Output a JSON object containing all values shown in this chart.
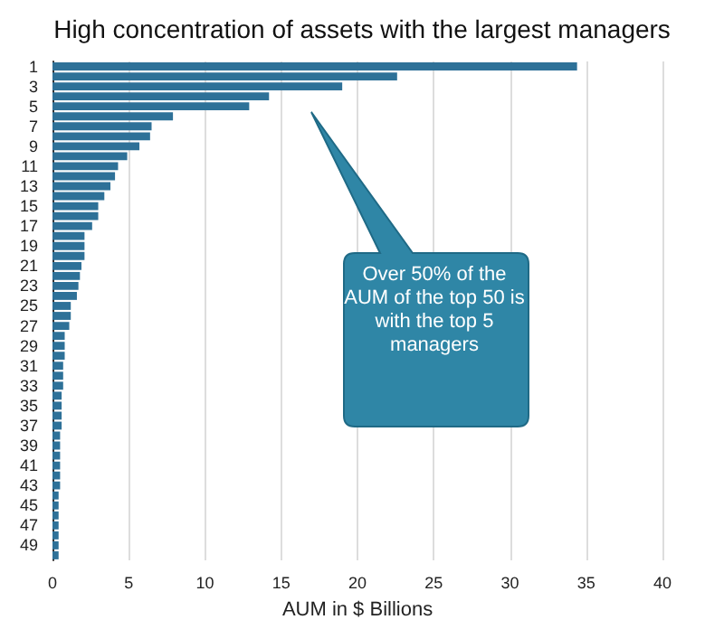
{
  "chart_data": {
    "type": "bar",
    "orientation": "horizontal",
    "title": "High concentration of assets with the largest managers",
    "xlabel": "AUM in $ Billions",
    "categories": [
      "1",
      null,
      "3",
      null,
      "5",
      null,
      "7",
      null,
      "9",
      null,
      "11",
      null,
      "13",
      null,
      "15",
      null,
      "17",
      null,
      "19",
      null,
      "21",
      null,
      "23",
      null,
      "25",
      null,
      "27",
      null,
      "29",
      null,
      "31",
      null,
      "33",
      null,
      "35",
      null,
      "37",
      null,
      "39",
      null,
      "41",
      null,
      "43",
      null,
      "45",
      null,
      "47",
      null,
      "49",
      null
    ],
    "values": [
      34.4,
      22.6,
      19.0,
      14.2,
      12.9,
      7.9,
      6.5,
      6.4,
      5.7,
      4.9,
      4.3,
      4.1,
      3.8,
      3.4,
      3.0,
      3.0,
      2.6,
      2.1,
      2.1,
      2.1,
      1.9,
      1.8,
      1.7,
      1.6,
      1.2,
      1.2,
      1.1,
      0.8,
      0.8,
      0.8,
      0.7,
      0.7,
      0.7,
      0.6,
      0.6,
      0.6,
      0.6,
      0.5,
      0.5,
      0.5,
      0.5,
      0.5,
      0.5,
      0.4,
      0.4,
      0.4,
      0.4,
      0.4,
      0.4,
      0.4
    ],
    "color": "#2e7198",
    "xlim": [
      0,
      40
    ],
    "xticks": [
      0,
      5,
      10,
      15,
      20,
      25,
      30,
      35,
      40
    ],
    "grid": "x",
    "annotations": [
      "Over 50% of the AUM of the top 50 is with the top 5 managers"
    ]
  }
}
